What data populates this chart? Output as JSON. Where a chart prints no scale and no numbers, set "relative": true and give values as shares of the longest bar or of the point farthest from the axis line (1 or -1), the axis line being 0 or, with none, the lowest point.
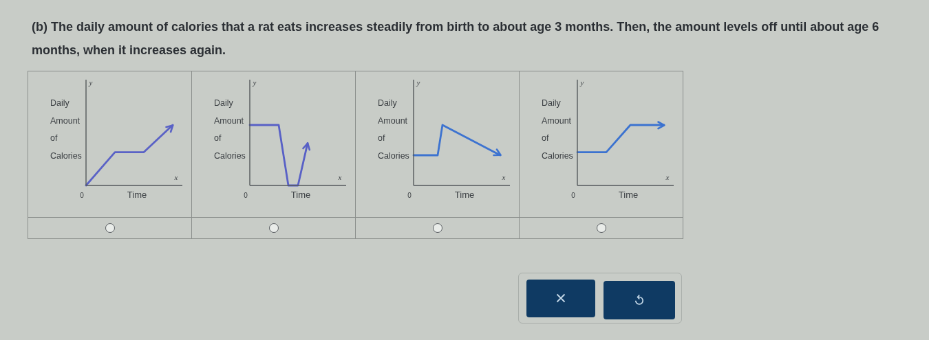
{
  "chart_data": [
    {
      "type": "other",
      "title": "(b) The daily amount of calories that a rat eats increases steadily from birth to about age 3 months. Then, the amount levels off until about age 6 months, when it increases again."
    },
    {
      "type": "line",
      "relative": true,
      "xlabel": "Time",
      "ylabel": "Daily Amount of Calories",
      "annotations": [
        "y",
        "x",
        "0"
      ],
      "color": "#5a62c6",
      "categories": [
        null,
        null,
        null,
        null,
        null,
        null,
        null,
        null,
        null,
        null,
        null,
        null,
        null,
        null,
        null,
        null,
        null,
        null,
        null,
        null,
        null
      ],
      "values": [
        0,
        null,
        null,
        null,
        null,
        null,
        0.55,
        null,
        null,
        null,
        null,
        null,
        0.55,
        null,
        null,
        null,
        null,
        null,
        1,
        null,
        null
      ]
    },
    {
      "type": "line",
      "relative": true,
      "xlabel": "Time",
      "ylabel": "Daily Amount of Calories",
      "annotations": [
        "y",
        "x",
        "0"
      ],
      "color": "#5860c6",
      "categories": [
        null,
        null,
        null,
        null,
        null,
        null,
        null,
        null,
        null,
        null,
        null,
        null,
        null,
        null,
        null,
        null,
        null,
        null,
        null,
        null,
        null
      ],
      "values": [
        1,
        null,
        null,
        null,
        null,
        null,
        1,
        null,
        0,
        null,
        0,
        null,
        0.7,
        null,
        null,
        null,
        null,
        null,
        null,
        null,
        null
      ]
    },
    {
      "type": "line",
      "relative": true,
      "xlabel": "Time",
      "ylabel": "Daily Amount of Calories",
      "annotations": [
        "y",
        "x",
        "0"
      ],
      "color": "#3d73d0",
      "categories": [
        null,
        null,
        null,
        null,
        null,
        null,
        null,
        null,
        null,
        null,
        null,
        null,
        null,
        null,
        null,
        null,
        null,
        null,
        null,
        null,
        null
      ],
      "values": [
        0.5,
        null,
        null,
        null,
        null,
        0.5,
        1,
        null,
        null,
        null,
        null,
        null,
        null,
        null,
        null,
        null,
        null,
        null,
        0.5,
        null,
        null
      ]
    },
    {
      "type": "line",
      "relative": true,
      "xlabel": "Time",
      "ylabel": "Daily Amount of Calories",
      "annotations": [
        "y",
        "x",
        "0"
      ],
      "color": "#3b72d0",
      "categories": [
        null,
        null,
        null,
        null,
        null,
        null,
        null,
        null,
        null,
        null,
        null,
        null,
        null,
        null,
        null,
        null,
        null,
        null,
        null,
        null,
        null
      ],
      "values": [
        0.55,
        null,
        null,
        null,
        null,
        null,
        0.55,
        null,
        null,
        null,
        null,
        1,
        null,
        null,
        null,
        null,
        null,
        null,
        1,
        null,
        null
      ]
    }
  ]
}
